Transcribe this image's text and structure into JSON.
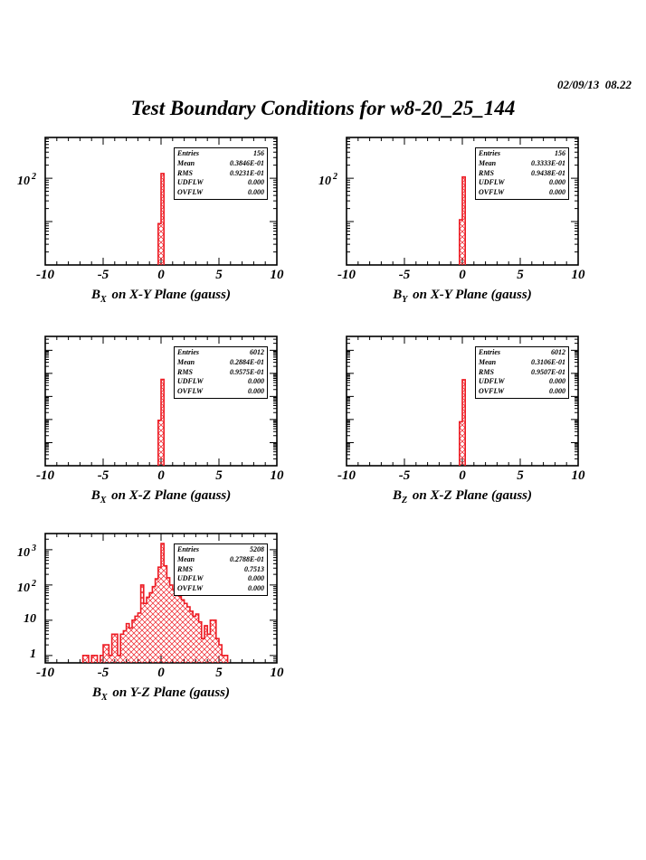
{
  "page": {
    "timestamp": "02/09/13  08.22",
    "title": "Test Boundary Conditions for w8-20_25_144",
    "colors": {
      "histogram": "#ed1c24",
      "frame": "#000000",
      "background": "#ffffff"
    }
  },
  "stats_labels": [
    "Entries",
    "Mean",
    "RMS",
    "UDFLW",
    "OVFLW"
  ],
  "chart_data": [
    {
      "id": "bx_xy",
      "type": "bar",
      "title": "B_X on X-Y Plane (gauss)",
      "title_parts": {
        "base": "B",
        "sub": "X",
        "rest": " on X-Y Plane (gauss)"
      },
      "xlim": [
        -10,
        10
      ],
      "x_ticks": [
        "-10",
        "-5",
        "0",
        "5",
        "10"
      ],
      "y_scale": "log",
      "ylim_log": [
        0,
        2.94
      ],
      "y_labeled_decades": [
        2
      ],
      "bin_width": 0.25,
      "bins": [
        [
          -0.25,
          9
        ],
        [
          0,
          128
        ]
      ],
      "stats_values": [
        "156",
        "0.3846E-01",
        "0.9231E-01",
        "0.000",
        "0.000"
      ]
    },
    {
      "id": "by_xy",
      "type": "bar",
      "title": "B_Y on X-Y Plane (gauss)",
      "title_parts": {
        "base": "B",
        "sub": "Y",
        "rest": " on X-Y Plane (gauss)"
      },
      "xlim": [
        -10,
        10
      ],
      "x_ticks": [
        "-10",
        "-5",
        "0",
        "5",
        "10"
      ],
      "y_scale": "log",
      "ylim_log": [
        0,
        2.94
      ],
      "y_labeled_decades": [
        2
      ],
      "bin_width": 0.25,
      "bins": [
        [
          -0.25,
          11
        ],
        [
          0,
          107
        ]
      ],
      "stats_values": [
        "156",
        "0.3333E-01",
        "0.9438E-01",
        "0.000",
        "0.000"
      ]
    },
    {
      "id": "bx_xz",
      "type": "bar",
      "title": "B_X on X-Z Plane (gauss)",
      "title_parts": {
        "base": "B",
        "sub": "X",
        "rest": " on X-Z Plane (gauss)"
      },
      "xlim": [
        -10,
        10
      ],
      "x_ticks": [
        "-10",
        "-5",
        "0",
        "5",
        "10"
      ],
      "y_scale": "log",
      "ylim_log": [
        0,
        5.6
      ],
      "y_labeled_decades": [],
      "bin_width": 0.25,
      "bins": [
        [
          -0.25,
          92
        ],
        [
          0,
          5500
        ]
      ],
      "stats_values": [
        "6012",
        "0.2884E-01",
        "0.9575E-01",
        "0.000",
        "0.000"
      ]
    },
    {
      "id": "bz_xz",
      "type": "bar",
      "title": "B_Z on X-Z Plane (gauss)",
      "title_parts": {
        "base": "B",
        "sub": "Z",
        "rest": " on X-Z Plane (gauss)"
      },
      "xlim": [
        -10,
        10
      ],
      "x_ticks": [
        "-10",
        "-5",
        "0",
        "5",
        "10"
      ],
      "y_scale": "log",
      "ylim_log": [
        0,
        5.6
      ],
      "y_labeled_decades": [],
      "bin_width": 0.25,
      "bins": [
        [
          -0.25,
          80
        ],
        [
          0,
          5300
        ]
      ],
      "stats_values": [
        "6012",
        "0.3106E-01",
        "0.9507E-01",
        "0.000",
        "0.000"
      ]
    },
    {
      "id": "bx_yz",
      "type": "bar",
      "title": "B_X on Y-Z Plane (gauss)",
      "title_parts": {
        "base": "B",
        "sub": "X",
        "rest": " on Y-Z Plane (gauss)"
      },
      "xlim": [
        -10,
        10
      ],
      "x_ticks": [
        "-10",
        "-5",
        "0",
        "5",
        "10"
      ],
      "y_scale": "log",
      "ylim_log": [
        -0.21,
        3.46
      ],
      "y_labeled_decades": [
        0,
        1,
        2,
        3
      ],
      "bin_width": 0.25,
      "bins": [
        [
          -6.75,
          1
        ],
        [
          -6.5,
          1
        ],
        [
          -6.0,
          1
        ],
        [
          -5.75,
          1
        ],
        [
          -5.25,
          1
        ],
        [
          -5.0,
          2
        ],
        [
          -4.75,
          2
        ],
        [
          -4.5,
          1
        ],
        [
          -4.25,
          4
        ],
        [
          -4.0,
          4
        ],
        [
          -3.75,
          1
        ],
        [
          -3.5,
          4
        ],
        [
          -3.25,
          5
        ],
        [
          -3.0,
          8
        ],
        [
          -2.75,
          6
        ],
        [
          -2.5,
          10
        ],
        [
          -2.25,
          13
        ],
        [
          -2.0,
          16
        ],
        [
          -1.75,
          100
        ],
        [
          -1.5,
          30
        ],
        [
          -1.25,
          45
        ],
        [
          -1.0,
          60
        ],
        [
          -0.75,
          90
        ],
        [
          -0.5,
          150
        ],
        [
          -0.25,
          320
        ],
        [
          0.0,
          1500
        ],
        [
          0.25,
          350
        ],
        [
          0.5,
          160
        ],
        [
          0.75,
          100
        ],
        [
          1.0,
          75
        ],
        [
          1.25,
          60
        ],
        [
          1.5,
          48
        ],
        [
          1.75,
          38
        ],
        [
          2.0,
          30
        ],
        [
          2.25,
          24
        ],
        [
          2.5,
          18
        ],
        [
          2.75,
          13
        ],
        [
          3.0,
          15
        ],
        [
          3.25,
          9
        ],
        [
          3.5,
          3
        ],
        [
          3.75,
          7
        ],
        [
          4.0,
          4
        ],
        [
          4.25,
          10
        ],
        [
          4.5,
          10
        ],
        [
          4.75,
          3
        ],
        [
          5.0,
          2
        ],
        [
          5.25,
          1
        ],
        [
          5.5,
          1
        ]
      ],
      "stats_values": [
        "5208",
        "0.2788E-01",
        "0.7513",
        "0.000",
        "0.000"
      ]
    }
  ]
}
